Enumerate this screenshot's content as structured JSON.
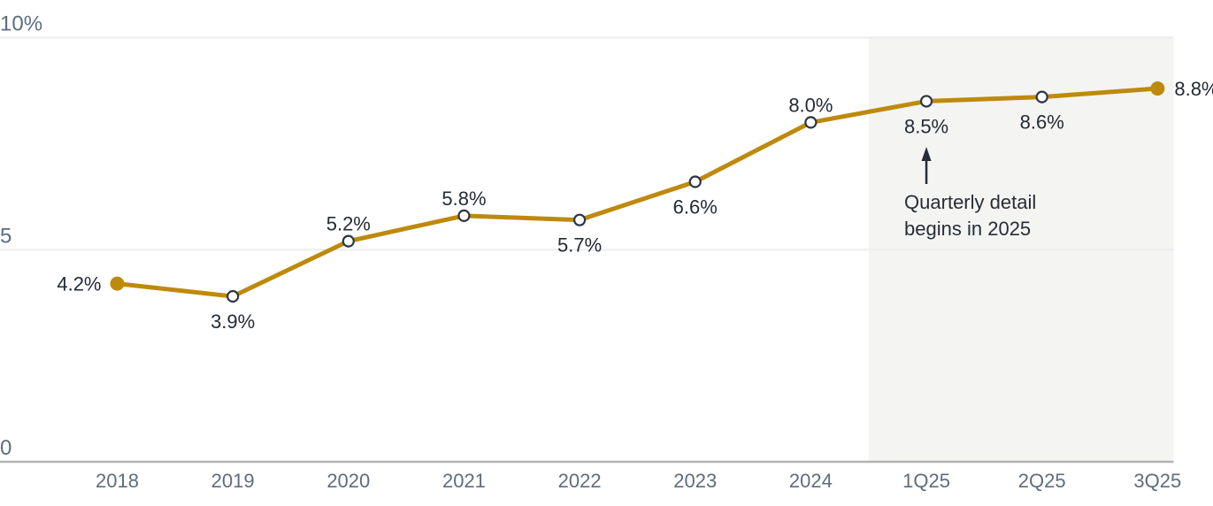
{
  "chart_data": {
    "type": "line",
    "title": "",
    "categories": [
      "2018",
      "2019",
      "2020",
      "2021",
      "2022",
      "2023",
      "2024",
      "1Q25",
      "2Q25",
      "3Q25"
    ],
    "series": [
      {
        "name": "percent-share",
        "values": [
          4.2,
          3.9,
          5.2,
          5.8,
          5.7,
          6.6,
          8.0,
          8.5,
          8.6,
          8.8
        ],
        "point_labels": [
          "4.2%",
          "3.9%",
          "5.2%",
          "5.8%",
          "5.7%",
          "6.6%",
          "8.0%",
          "8.5%",
          "8.6%",
          "8.8%"
        ],
        "label_positions": [
          "left",
          "below",
          "above",
          "above",
          "below",
          "below",
          "above",
          "below",
          "below",
          "right"
        ],
        "markers": [
          "filled",
          "open",
          "open",
          "open",
          "open",
          "open",
          "open",
          "open",
          "open",
          "filled"
        ]
      }
    ],
    "ylim": [
      0,
      10
    ],
    "yticks": [
      {
        "value": 0,
        "label": "0"
      },
      {
        "value": 5,
        "label": "5"
      },
      {
        "value": 10,
        "label": "10%"
      }
    ],
    "grid": "horizontal",
    "legend": "none",
    "highlight_region": {
      "from_between": [
        "2024",
        "1Q25"
      ],
      "to": "right-edge"
    },
    "annotation": {
      "text_lines": [
        "Quarterly detail",
        "begins in 2025"
      ],
      "arrow_points_to_category": "1Q25"
    },
    "colors": {
      "line": "#BE8A0C",
      "marker_fill_open": "#FFFFFF",
      "marker_stroke": "#2E3743",
      "point_label_text": "#232B35",
      "axis_text": "#5E6D7E",
      "gridline": "#EDEDED",
      "axis_line": "#B3B3B3",
      "highlight_bg": "#F4F4F3",
      "annotation_text": "#262D36",
      "arrow": "#262D36"
    }
  }
}
